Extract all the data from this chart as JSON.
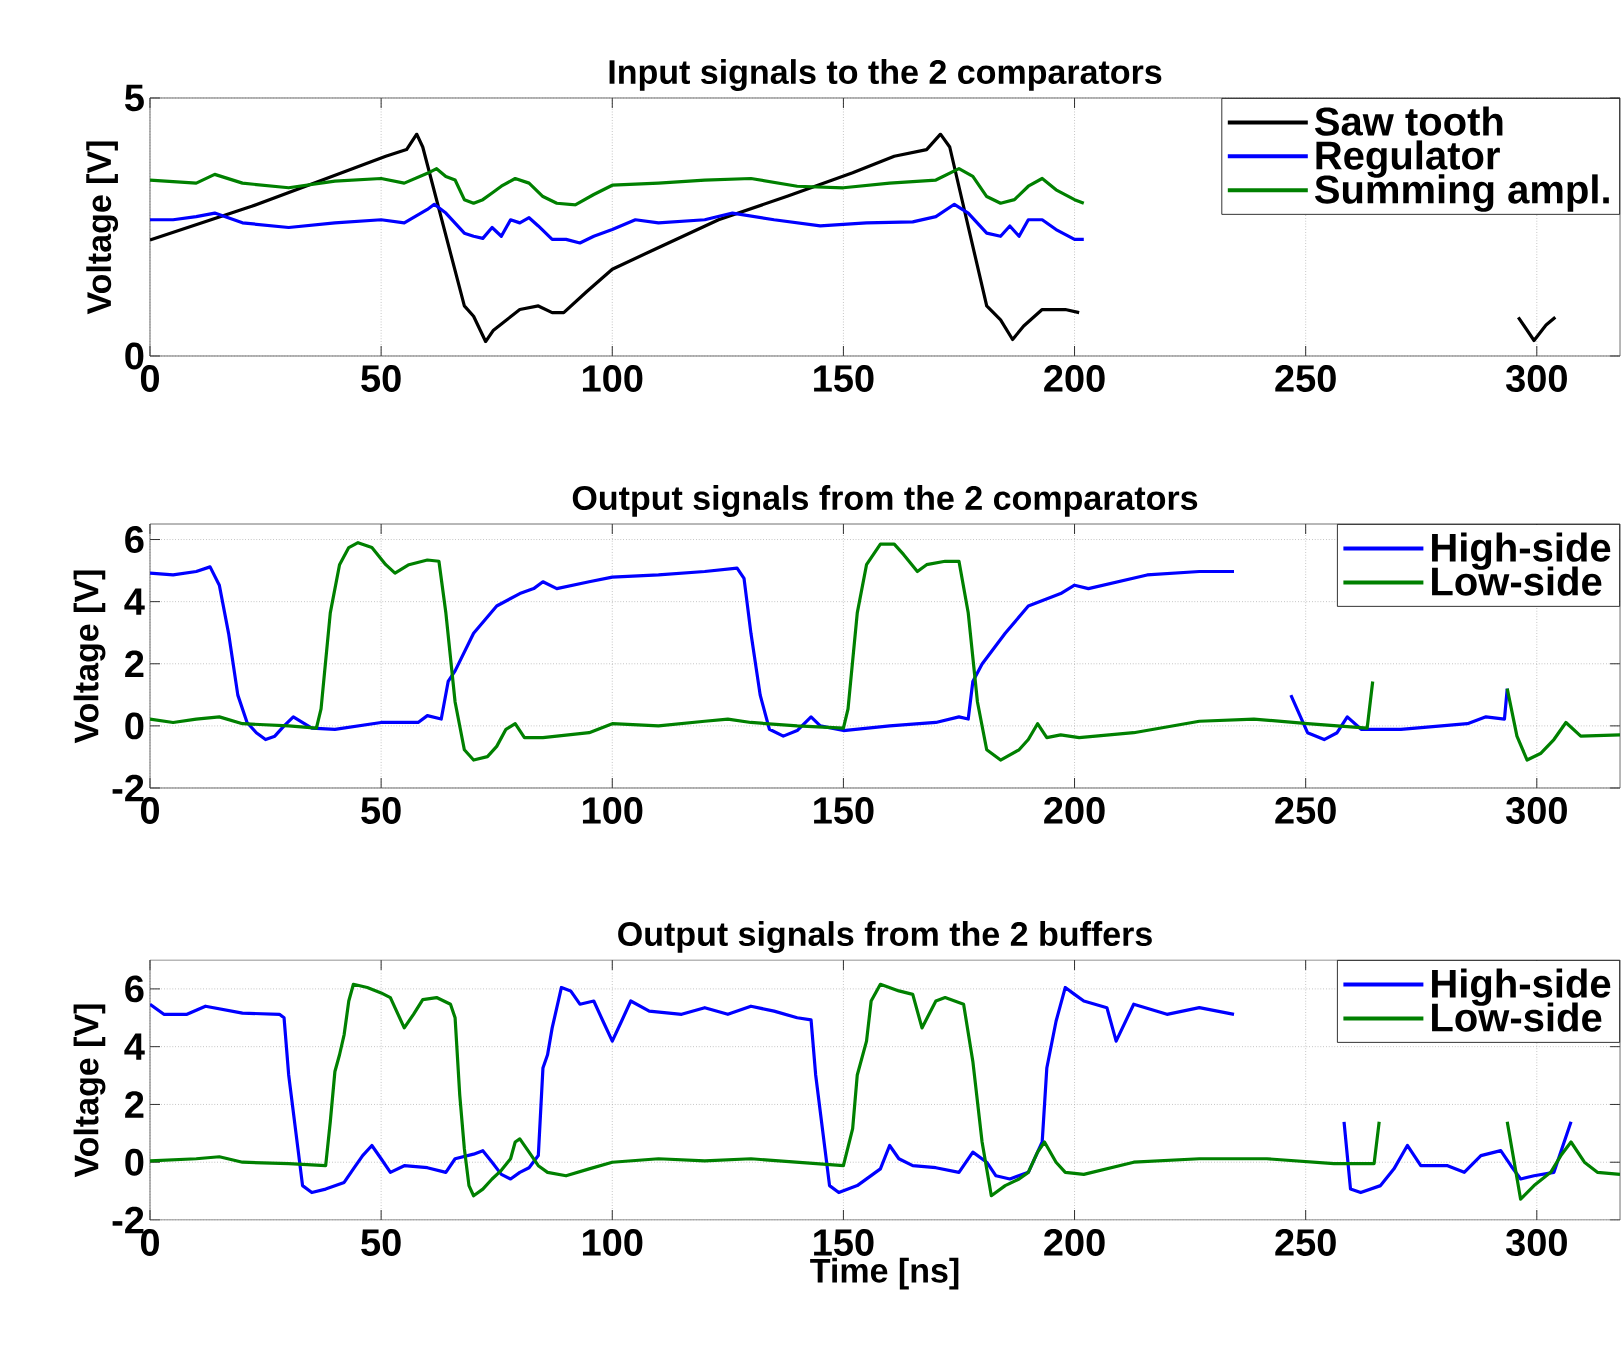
{
  "chart_data": [
    {
      "type": "line",
      "title": "Input signals to the 2 comparators",
      "ylabel": "Voltage [V]",
      "xlim": [
        0,
        318
      ],
      "xticks": [
        0,
        50,
        100,
        150,
        200,
        250,
        300
      ],
      "ylim": [
        0,
        5
      ],
      "yticks": [
        0,
        5
      ],
      "grid": true,
      "legend": "top right",
      "marker": "none",
      "line_style": "solid",
      "series": [
        {
          "name": "Saw tooth",
          "color": "#000000",
          "x": [
            0,
            22,
            37,
            51,
            55.5,
            57.7,
            59,
            68,
            70,
            72.6,
            74.3,
            80,
            84,
            87,
            89.5,
            94.5,
            100,
            109,
            123,
            138,
            152,
            161,
            168,
            171,
            173,
            181,
            184,
            186.6,
            189,
            193,
            198,
            201,
            250,
            296,
            299.4,
            302,
            304
          ],
          "values": [
            2.25,
            2.9,
            3.4,
            3.87,
            4.0,
            4.3,
            4.05,
            0.97,
            0.77,
            0.28,
            0.5,
            0.9,
            0.97,
            0.84,
            0.84,
            1.25,
            1.68,
            2.06,
            2.64,
            3.1,
            3.55,
            3.87,
            4.0,
            4.3,
            4.05,
            0.97,
            0.7,
            0.32,
            0.58,
            0.9,
            0.9,
            0.84,
            null,
            0.75,
            0.3,
            0.6,
            0.75
          ]
        },
        {
          "name": "Regulator",
          "color": "#0000ff",
          "x": [
            0,
            5,
            10,
            14,
            20,
            30,
            40,
            50,
            55,
            60,
            61.5,
            64,
            68,
            70,
            72,
            74,
            76,
            78,
            80,
            82,
            84,
            87,
            90,
            93,
            96,
            100,
            105,
            110,
            120,
            126,
            135,
            145,
            155,
            165,
            170,
            174,
            177,
            181,
            184,
            186,
            188,
            190,
            193,
            196,
            200,
            202
          ],
          "values": [
            2.64,
            2.64,
            2.7,
            2.77,
            2.58,
            2.49,
            2.58,
            2.64,
            2.58,
            2.84,
            2.94,
            2.77,
            2.38,
            2.32,
            2.28,
            2.49,
            2.32,
            2.64,
            2.58,
            2.68,
            2.52,
            2.26,
            2.26,
            2.19,
            2.32,
            2.45,
            2.64,
            2.58,
            2.64,
            2.77,
            2.64,
            2.52,
            2.58,
            2.6,
            2.7,
            2.94,
            2.77,
            2.38,
            2.32,
            2.52,
            2.32,
            2.64,
            2.64,
            2.45,
            2.26,
            2.26
          ]
        },
        {
          "name": "Summing ampl.",
          "color": "#008000",
          "x": [
            0,
            10,
            14,
            20,
            30,
            40,
            50,
            55,
            60,
            62,
            64,
            66,
            68,
            70,
            72,
            74,
            76,
            79,
            82,
            85,
            88,
            92,
            96,
            100,
            110,
            120,
            130,
            140,
            150,
            160,
            170,
            175,
            178,
            181,
            184,
            187,
            190,
            193,
            196,
            200,
            202
          ],
          "values": [
            3.41,
            3.35,
            3.52,
            3.35,
            3.26,
            3.39,
            3.44,
            3.35,
            3.54,
            3.63,
            3.48,
            3.41,
            3.03,
            2.96,
            3.03,
            3.16,
            3.29,
            3.44,
            3.35,
            3.09,
            2.96,
            2.93,
            3.13,
            3.31,
            3.35,
            3.41,
            3.44,
            3.29,
            3.26,
            3.35,
            3.41,
            3.63,
            3.48,
            3.09,
            2.96,
            3.03,
            3.29,
            3.44,
            3.22,
            3.03,
            2.96
          ]
        }
      ]
    },
    {
      "type": "line",
      "title": "Output signals from the 2 comparators",
      "ylabel": "Voltage [V]",
      "xlim": [
        0,
        318
      ],
      "xticks": [
        0,
        50,
        100,
        150,
        200,
        250,
        300
      ],
      "ylim": [
        -2,
        6.5
      ],
      "yticks": [
        -2,
        0,
        2,
        4,
        6
      ],
      "grid": true,
      "legend": "top right",
      "marker": "none",
      "line_style": "solid",
      "series": [
        {
          "name": "High-side",
          "color": "#0000ff",
          "x": [
            0,
            5,
            10,
            13,
            15,
            17,
            19,
            21,
            23,
            25,
            27,
            29,
            31,
            33,
            35,
            40,
            50,
            58,
            60,
            63,
            64.5,
            66,
            70,
            75,
            80,
            83,
            85,
            88,
            95,
            100,
            110,
            120,
            127,
            128.5,
            130,
            132,
            134,
            137,
            140,
            143,
            145,
            150,
            160,
            170,
            175,
            177,
            178,
            180,
            185,
            190,
            197,
            200,
            203,
            215.7,
            227,
            234.5,
            240,
            246.8,
            250.4,
            254,
            256.8,
            259,
            262,
            270.6,
            285,
            289,
            293,
            293.6
          ],
          "values": [
            4.92,
            4.86,
            4.97,
            5.12,
            4.53,
            2.98,
            0.99,
            0.11,
            -0.22,
            -0.44,
            -0.33,
            0,
            0.29,
            0.11,
            -0.07,
            -0.11,
            0.11,
            0.11,
            0.33,
            0.22,
            1.43,
            1.77,
            2.98,
            3.86,
            4.26,
            4.42,
            4.64,
            4.42,
            4.64,
            4.79,
            4.86,
            4.97,
            5.08,
            4.75,
            2.98,
            0.99,
            -0.11,
            -0.33,
            -0.15,
            0.29,
            0,
            -0.15,
            0,
            0.11,
            0.29,
            0.22,
            1.43,
            1.99,
            2.98,
            3.86,
            4.26,
            4.53,
            4.42,
            4.86,
            4.97,
            4.97,
            null,
            0.99,
            -0.22,
            -0.44,
            -0.22,
            0.29,
            -0.11,
            -0.11,
            0.07,
            0.29,
            0.22,
            1.2
          ]
        },
        {
          "name": "Low-side",
          "color": "#008000",
          "x": [
            0,
            5,
            10,
            15,
            20,
            30,
            36,
            37,
            39,
            41,
            43,
            45,
            48,
            51,
            53,
            56,
            60,
            62.5,
            64,
            66,
            68,
            70,
            73,
            75,
            77,
            79,
            81,
            85,
            95,
            100,
            110,
            120,
            125,
            130,
            140,
            150,
            151,
            153,
            155,
            158,
            161,
            163,
            166,
            168,
            172,
            175,
            177,
            179,
            181,
            184,
            188,
            190,
            192,
            194,
            197,
            201,
            212.8,
            227,
            238.8,
            250.4,
            263.3,
            264.5,
            280,
            293.6,
            295.7,
            297.9,
            300.9,
            303.7,
            306.3,
            309.5,
            318
          ],
          "values": [
            0.22,
            0.11,
            0.22,
            0.29,
            0.07,
            0,
            -0.07,
            0.55,
            3.64,
            5.19,
            5.74,
            5.9,
            5.74,
            5.19,
            4.92,
            5.19,
            5.34,
            5.3,
            3.64,
            0.77,
            -0.77,
            -1.1,
            -0.99,
            -0.66,
            -0.11,
            0.07,
            -0.38,
            -0.38,
            -0.22,
            0.07,
            0,
            0.15,
            0.22,
            0.11,
            0,
            -0.07,
            0.55,
            3.64,
            5.19,
            5.85,
            5.85,
            5.52,
            4.97,
            5.19,
            5.3,
            5.3,
            3.64,
            0.77,
            -0.77,
            -1.1,
            -0.77,
            -0.44,
            0.07,
            -0.38,
            -0.29,
            -0.38,
            -0.22,
            0.15,
            0.22,
            0.07,
            -0.07,
            1.43,
            null,
            1.2,
            -0.33,
            -1.1,
            -0.88,
            -0.44,
            0.11,
            -0.33,
            -0.29
          ]
        }
      ]
    },
    {
      "type": "line",
      "title": "Output signals from the 2 buffers",
      "xlabel": "Time [ns]",
      "ylabel": "Voltage [V]",
      "xlim": [
        0,
        318
      ],
      "xticks": [
        0,
        50,
        100,
        150,
        200,
        250,
        300
      ],
      "ylim": [
        -2,
        7
      ],
      "yticks": [
        -2,
        0,
        2,
        4,
        6
      ],
      "grid": true,
      "legend": "top right",
      "marker": "none",
      "line_style": "solid",
      "series": [
        {
          "name": "High-side",
          "color": "#0000ff",
          "x": [
            0,
            3,
            8,
            12,
            20,
            28,
            29,
            30,
            32,
            33,
            35,
            38,
            42,
            44,
            46,
            48,
            50,
            52,
            55,
            60,
            64,
            66,
            70,
            72,
            74,
            76,
            78,
            80,
            82,
            84,
            85,
            86,
            87,
            89,
            91,
            93,
            96,
            98,
            100,
            102,
            104,
            108,
            115,
            120,
            125,
            130,
            135,
            140,
            143,
            144,
            146,
            147,
            149,
            153,
            158,
            160,
            162,
            165,
            170,
            175,
            178,
            181,
            183,
            186,
            190,
            193,
            194,
            196,
            198,
            200,
            202,
            207,
            209,
            212.8,
            220,
            227,
            234.5,
            245,
            258.3,
            259.7,
            261.9,
            266.2,
            269.1,
            272,
            274.9,
            280.7,
            284.3,
            287.9,
            292.2,
            294.4,
            296.5,
            299.4,
            303.7,
            307.4
          ],
          "values": [
            5.47,
            5.12,
            5.12,
            5.4,
            5.16,
            5.12,
            5.0,
            3.02,
            0.47,
            -0.81,
            -1.05,
            -0.93,
            -0.7,
            -0.23,
            0.23,
            0.58,
            0.12,
            -0.35,
            -0.12,
            -0.19,
            -0.35,
            0.12,
            0.28,
            0.4,
            0,
            -0.42,
            -0.58,
            -0.35,
            -0.19,
            0.23,
            3.26,
            3.72,
            4.65,
            6.05,
            5.93,
            5.47,
            5.58,
            4.88,
            4.19,
            4.88,
            5.58,
            5.23,
            5.12,
            5.35,
            5.12,
            5.4,
            5.23,
            5.0,
            4.93,
            3.02,
            0.47,
            -0.81,
            -1.05,
            -0.81,
            -0.23,
            0.58,
            0.12,
            -0.12,
            -0.19,
            -0.35,
            0.35,
            0,
            -0.47,
            -0.58,
            -0.35,
            0.7,
            3.26,
            4.88,
            6.05,
            5.81,
            5.58,
            5.35,
            4.19,
            5.47,
            5.12,
            5.35,
            5.12,
            null,
            1.4,
            -0.93,
            -1.05,
            -0.81,
            -0.23,
            0.58,
            -0.12,
            -0.12,
            -0.35,
            0.23,
            0.4,
            -0.12,
            -0.58,
            -0.47,
            -0.35,
            1.4
          ]
        },
        {
          "name": "Low-side",
          "color": "#008000",
          "x": [
            0,
            10,
            15,
            20,
            30,
            38,
            39,
            40,
            41,
            42,
            43,
            44,
            47,
            50,
            52,
            55,
            57,
            59,
            62,
            65,
            66,
            67,
            68,
            69,
            70,
            72,
            74,
            76,
            78,
            79,
            80,
            82,
            84,
            86,
            90,
            95,
            100,
            110,
            120,
            130,
            140,
            150,
            152,
            153,
            155,
            156,
            158,
            162,
            165,
            167,
            170,
            172,
            176,
            178,
            180,
            182,
            185,
            188,
            190,
            192,
            193.5,
            196,
            198,
            202,
            212.8,
            227,
            241.6,
            256.1,
            264.8,
            265.9,
            280,
            293.6,
            296.5,
            299.4,
            303,
            305.2,
            307.4,
            310.3,
            313.1,
            318
          ],
          "values": [
            0.05,
            0.12,
            0.19,
            0,
            -0.05,
            -0.12,
            1.4,
            3.14,
            3.72,
            4.42,
            5.58,
            6.16,
            6.05,
            5.86,
            5.7,
            4.65,
            5.12,
            5.63,
            5.7,
            5.47,
            5.0,
            2.33,
            0.47,
            -0.81,
            -1.16,
            -0.93,
            -0.58,
            -0.28,
            0.12,
            0.7,
            0.81,
            0.35,
            -0.12,
            -0.35,
            -0.47,
            -0.23,
            0,
            0.12,
            0.05,
            0.12,
            0,
            -0.12,
            1.16,
            3.02,
            4.19,
            5.58,
            6.16,
            5.93,
            5.81,
            4.65,
            5.58,
            5.7,
            5.47,
            3.49,
            0.7,
            -1.16,
            -0.81,
            -0.58,
            -0.35,
            0.35,
            0.7,
            0,
            -0.35,
            -0.42,
            0,
            0.12,
            0.12,
            -0.05,
            -0.05,
            1.4,
            null,
            1.4,
            -1.28,
            -0.81,
            -0.35,
            0.23,
            0.7,
            0,
            -0.35,
            -0.42
          ]
        }
      ]
    }
  ]
}
